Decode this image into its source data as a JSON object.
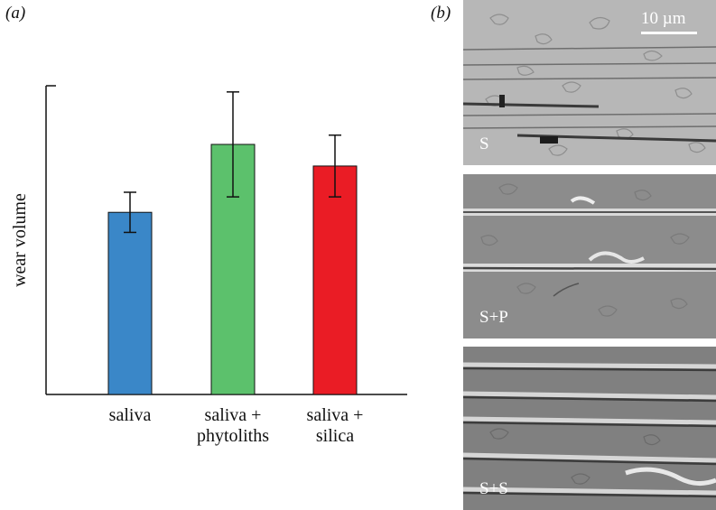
{
  "panel_a_label": "(a)",
  "panel_b_label": "(b)",
  "chart_data": {
    "type": "bar",
    "ylabel": "wear volume",
    "ylim": [
      0,
      100
    ],
    "grid": false,
    "categories": [
      [
        "saliva"
      ],
      [
        "saliva +",
        "phytoliths"
      ],
      [
        "saliva +",
        "silica"
      ]
    ],
    "values": [
      59,
      81,
      74
    ],
    "errors": [
      6.5,
      17,
      10
    ],
    "colors": [
      "#3a87c8",
      "#5cc16c",
      "#ea1c25"
    ]
  },
  "micrographs": [
    {
      "label": "S",
      "scale_bar": "10 µm"
    },
    {
      "label": "S+P"
    },
    {
      "label": "S+S"
    }
  ]
}
